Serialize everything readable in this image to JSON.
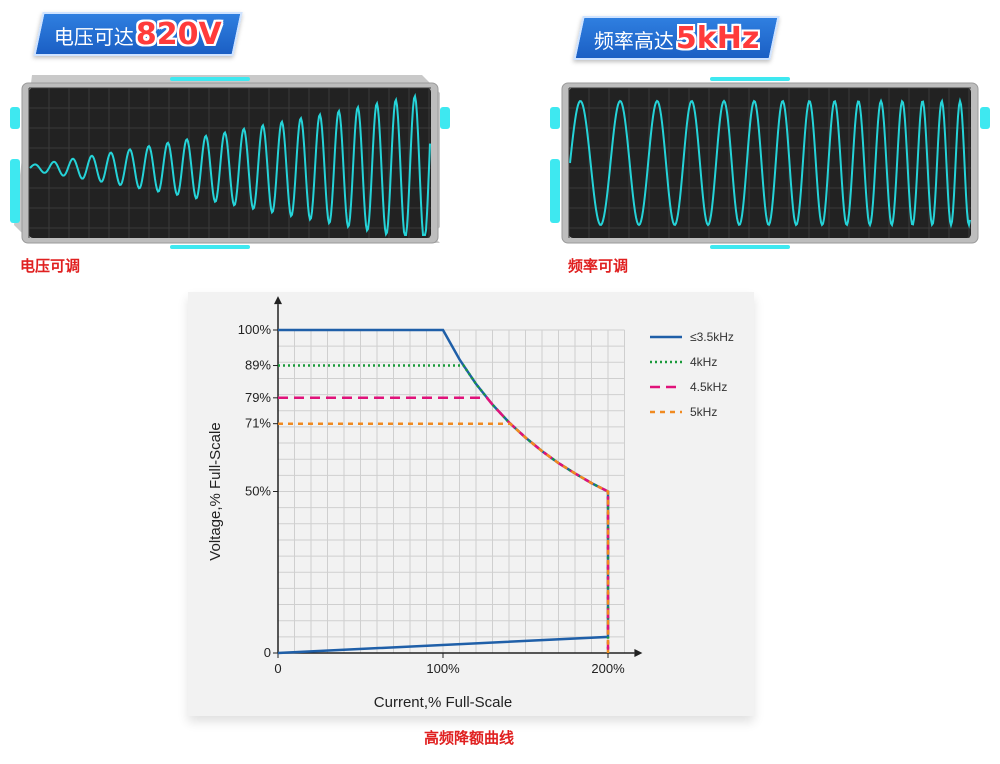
{
  "panels": [
    {
      "banner_label": "电压可达",
      "banner_value": "820V",
      "caption": "电压可调"
    },
    {
      "banner_label": "频率高达",
      "banner_value": "5kHz",
      "caption": "频率可调"
    }
  ],
  "colors": {
    "wave": "#25d3d8",
    "screen": "#222222",
    "bezel": "#b8b8b8",
    "accent": "#3ee8f0"
  },
  "chart_data": {
    "type": "line",
    "caption": "高频降额曲线",
    "xlabel": "Current,% Full-Scale",
    "ylabel": "Voltage,% Full-Scale",
    "xlim": [
      0,
      220
    ],
    "ylim": [
      0,
      100
    ],
    "x_ticks": [
      {
        "value": 0,
        "label": "0"
      },
      {
        "value": 100,
        "label": "100%"
      },
      {
        "value": 200,
        "label": "200%"
      }
    ],
    "y_ticks": [
      {
        "value": 0,
        "label": "0"
      },
      {
        "value": 50,
        "label": "50%"
      },
      {
        "value": 71,
        "label": "71%"
      },
      {
        "value": 79,
        "label": "79%"
      },
      {
        "value": 89,
        "label": "89%"
      },
      {
        "value": 100,
        "label": "100%"
      }
    ],
    "grid": true,
    "legend_position": "top-right",
    "series": [
      {
        "name": "≤3.5kHz",
        "color": "#1f5fa8",
        "style": "solid",
        "points": [
          [
            0,
            100
          ],
          [
            100,
            100
          ],
          [
            110,
            90.9
          ],
          [
            120,
            83.3
          ],
          [
            130,
            76.9
          ],
          [
            140,
            71.4
          ],
          [
            150,
            66.7
          ],
          [
            160,
            62.5
          ],
          [
            170,
            58.8
          ],
          [
            180,
            55.6
          ],
          [
            190,
            52.6
          ],
          [
            200,
            50
          ],
          [
            200,
            5
          ],
          [
            0,
            0
          ]
        ]
      },
      {
        "name": "4kHz",
        "color": "#1a9a3a",
        "style": "dotted",
        "points": [
          [
            0,
            89
          ],
          [
            112.4,
            89
          ],
          [
            120,
            83.3
          ],
          [
            130,
            76.9
          ],
          [
            140,
            71.4
          ],
          [
            150,
            66.7
          ],
          [
            160,
            62.5
          ],
          [
            170,
            58.8
          ],
          [
            180,
            55.6
          ],
          [
            190,
            52.6
          ],
          [
            200,
            50
          ],
          [
            200,
            0
          ]
        ]
      },
      {
        "name": "4.5kHz",
        "color": "#e0127a",
        "style": "dashed",
        "points": [
          [
            0,
            79
          ],
          [
            126.6,
            79
          ],
          [
            130,
            76.9
          ],
          [
            140,
            71.4
          ],
          [
            150,
            66.7
          ],
          [
            160,
            62.5
          ],
          [
            170,
            58.8
          ],
          [
            180,
            55.6
          ],
          [
            190,
            52.6
          ],
          [
            200,
            50
          ],
          [
            200,
            0
          ]
        ]
      },
      {
        "name": "5kHz",
        "color": "#f08a20",
        "style": "dashed-short",
        "points": [
          [
            0,
            71
          ],
          [
            140.8,
            71
          ],
          [
            150,
            66.7
          ],
          [
            160,
            62.5
          ],
          [
            170,
            58.8
          ],
          [
            180,
            55.6
          ],
          [
            190,
            52.6
          ],
          [
            200,
            50
          ],
          [
            200,
            0
          ]
        ]
      }
    ]
  }
}
